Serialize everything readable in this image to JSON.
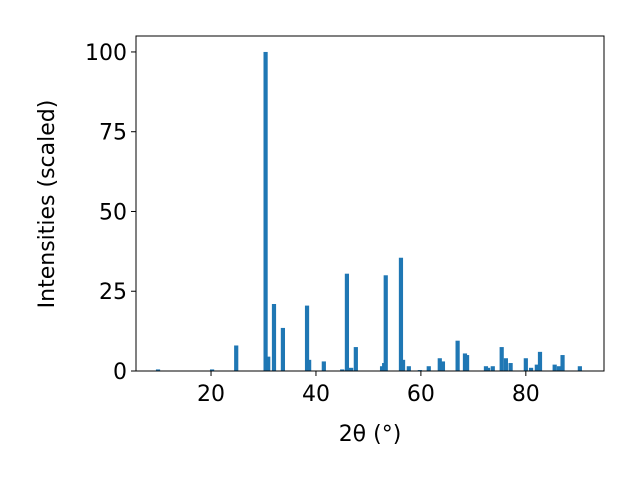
{
  "chart_data": {
    "type": "bar",
    "xlabel": "2θ (°)",
    "ylabel": "Intensities (scaled)",
    "color": "#1f77b4",
    "x": [
      9.9,
      20.2,
      24.8,
      30.4,
      30.9,
      32.0,
      33.7,
      38.3,
      38.7,
      41.5,
      45.0,
      45.9,
      46.7,
      47.6,
      52.6,
      53.0,
      53.3,
      56.2,
      56.6,
      57.7,
      59.8,
      61.5,
      63.6,
      64.2,
      67.0,
      68.4,
      68.8,
      72.4,
      72.8,
      73.7,
      75.4,
      76.2,
      77.1,
      80.0,
      81.0,
      82.1,
      82.7,
      85.5,
      86.3,
      87.0,
      90.3
    ],
    "values": [
      0.5,
      0.5,
      8,
      100,
      4.5,
      21,
      13.5,
      20.5,
      3.5,
      3,
      0.5,
      30.5,
      1,
      7.5,
      1.5,
      2.5,
      30,
      35.5,
      3.5,
      1.5,
      0.3,
      1.5,
      4,
      3,
      9.5,
      5.5,
      5,
      1.5,
      1,
      1.5,
      7.5,
      4,
      2.5,
      4,
      1,
      2,
      6,
      2,
      1.5,
      5,
      1.5
    ],
    "xlim": [
      5.7,
      94.9
    ],
    "ylim": [
      0,
      105
    ],
    "xticks": [
      20,
      40,
      60,
      80
    ],
    "yticks": [
      0,
      25,
      50,
      75,
      100
    ],
    "grid": false
  }
}
